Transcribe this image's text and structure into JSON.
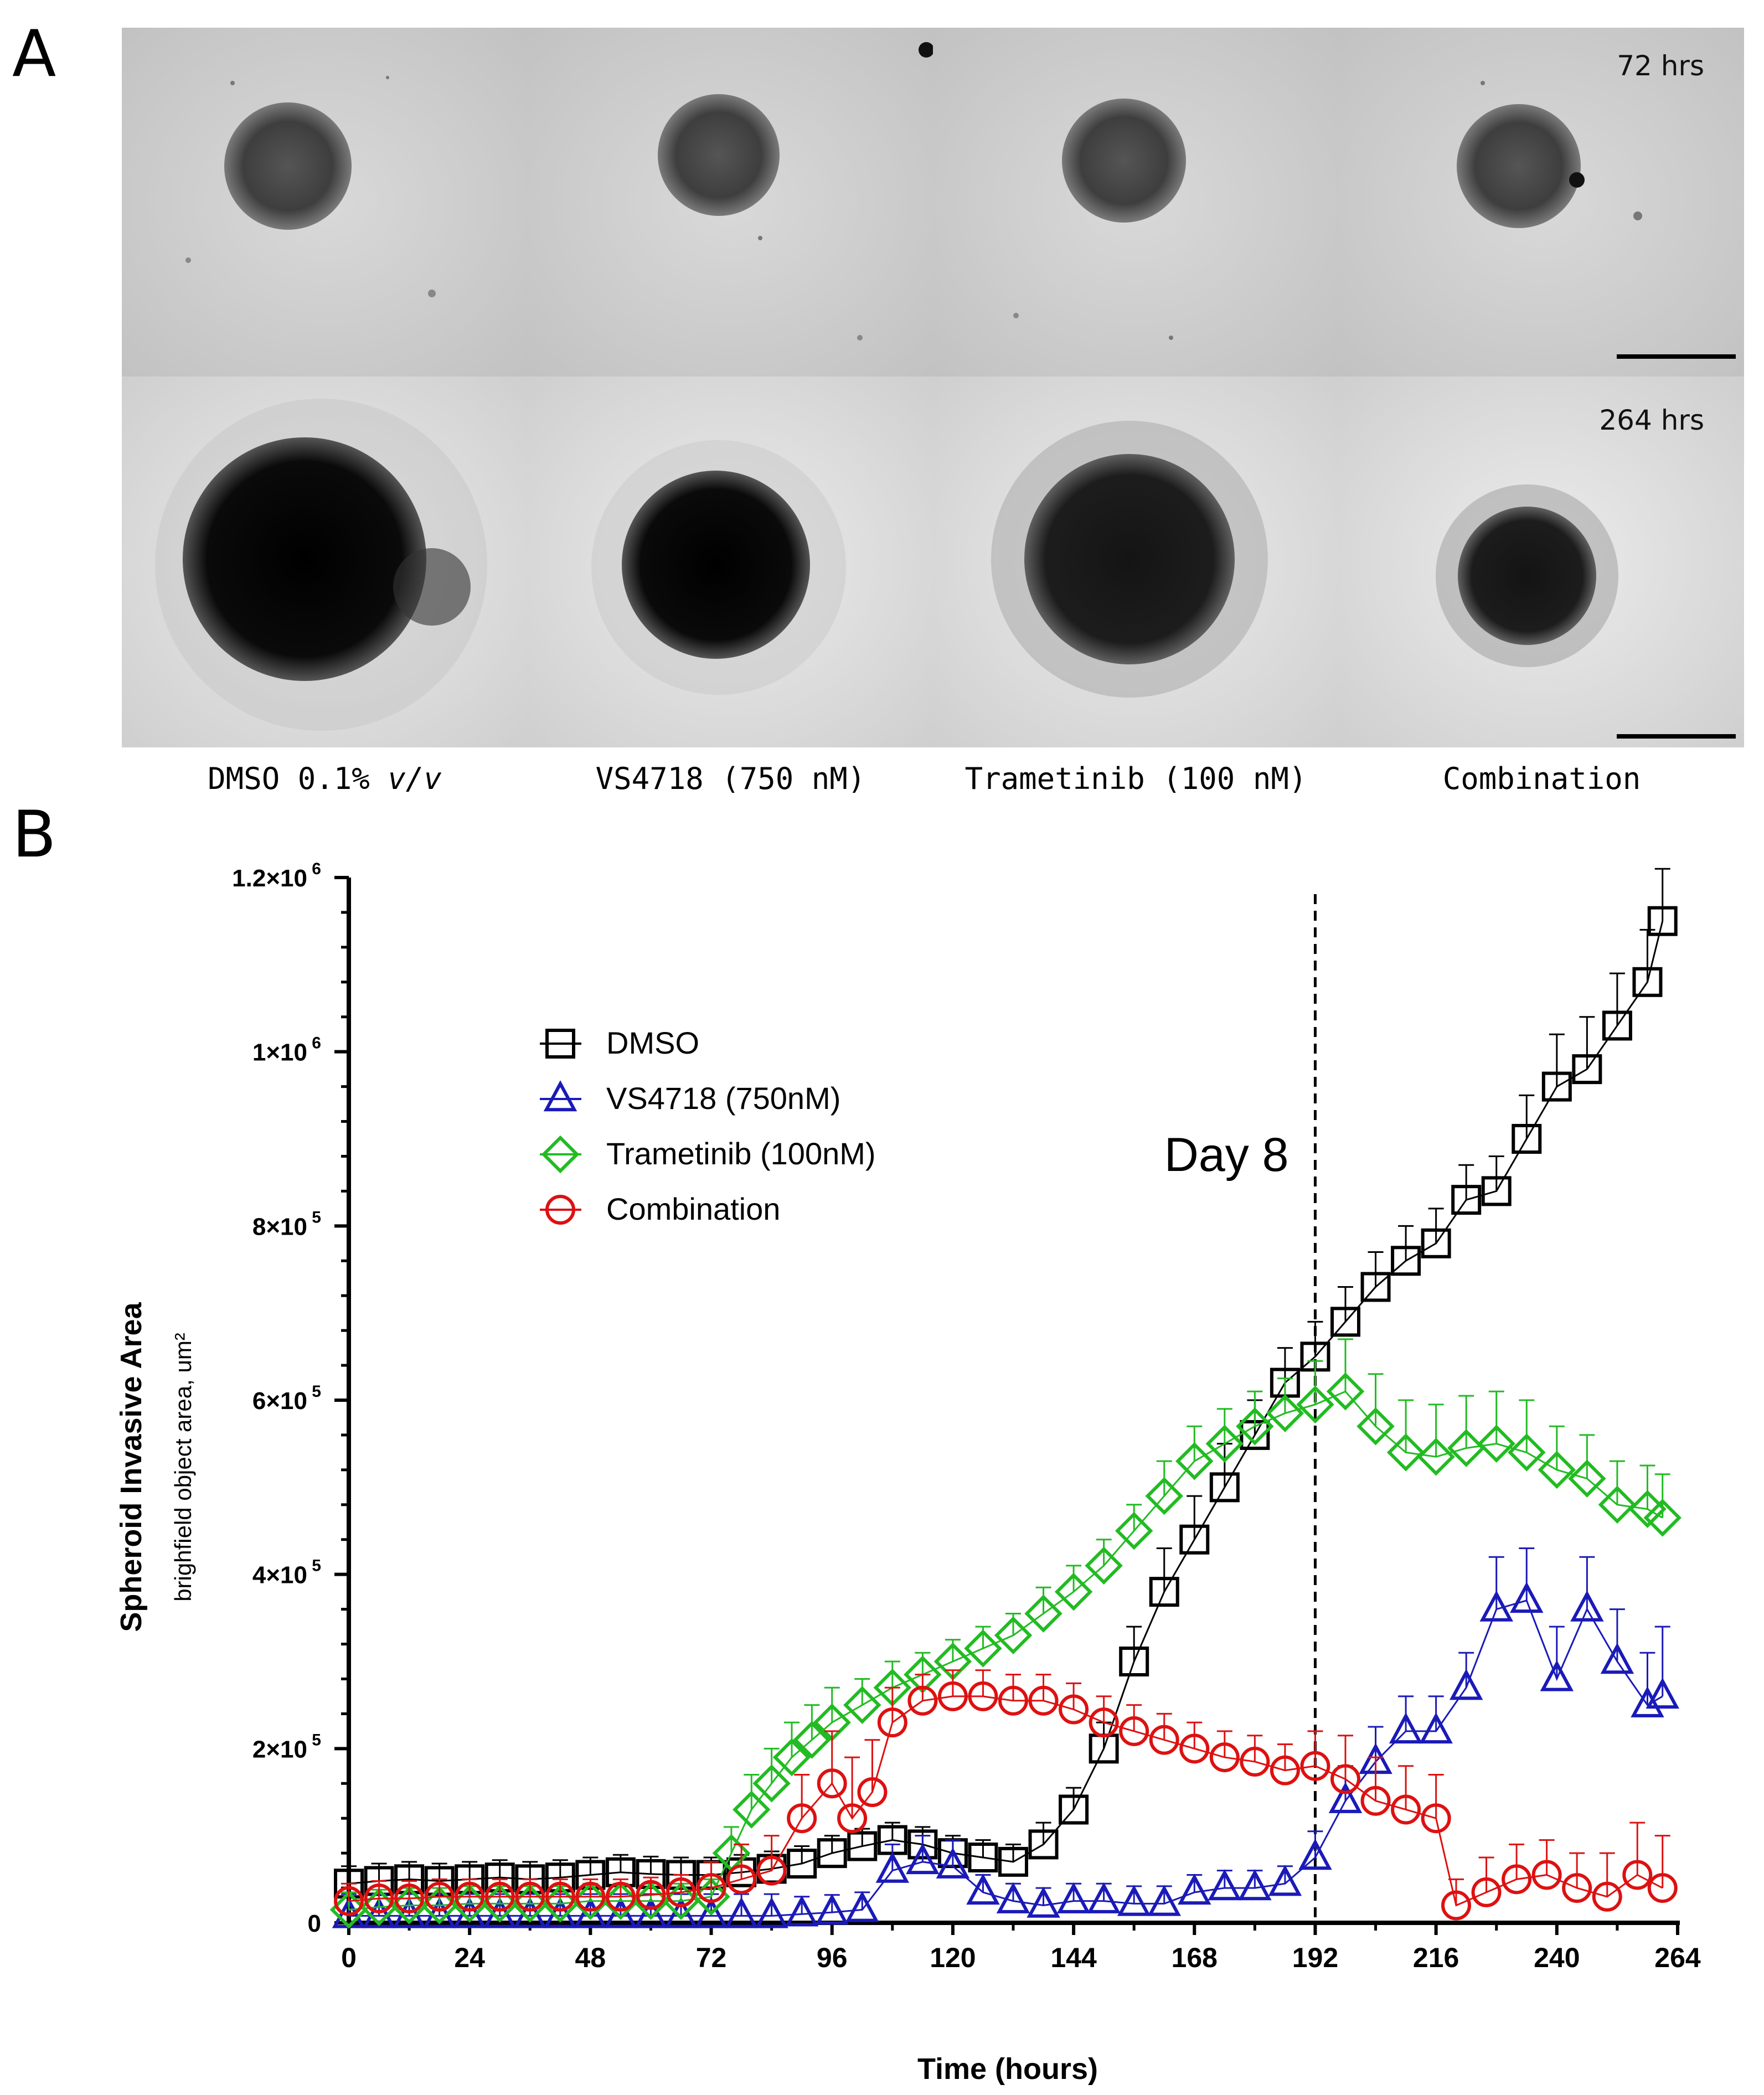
{
  "panel_a": {
    "letter": "A",
    "time_labels": [
      "72 hrs",
      "264 hrs"
    ],
    "conditions": [
      {
        "main": "DMSO 0.1% ",
        "italic": "v/v"
      },
      {
        "main": "VS4718 (750 nM)",
        "italic": ""
      },
      {
        "main": "Trametinib (100 nM)",
        "italic": ""
      },
      {
        "main": "Combination",
        "italic": ""
      }
    ]
  },
  "panel_b": {
    "letter": "B",
    "annotation": "Day 8"
  },
  "chart_data": {
    "type": "scatter",
    "xlabel": "Time (hours)",
    "ylabel": "Spheroid Invasive Area",
    "ylabel_sub": "brighfield object area, um²",
    "xlim": [
      0,
      264
    ],
    "ylim": [
      0,
      1200000
    ],
    "xticks": [
      0,
      24,
      48,
      72,
      96,
      120,
      144,
      168,
      192,
      216,
      240,
      264
    ],
    "yticks": [
      {
        "value": 0,
        "base": "0",
        "exp": ""
      },
      {
        "value": 200000,
        "base": "2×10",
        "exp": "5"
      },
      {
        "value": 400000,
        "base": "4×10",
        "exp": "5"
      },
      {
        "value": 600000,
        "base": "6×10",
        "exp": "5"
      },
      {
        "value": 800000,
        "base": "8×10",
        "exp": "5"
      },
      {
        "value": 1000000,
        "base": "1×10",
        "exp": "6"
      },
      {
        "value": 1200000,
        "base": "1.2×10",
        "exp": "6"
      }
    ],
    "vline": {
      "x": 192,
      "label": "Day 8"
    },
    "legend": {
      "position": "top-left"
    },
    "series": [
      {
        "name": "DMSO",
        "color": "#000000",
        "marker": "square",
        "x": [
          0,
          6,
          12,
          18,
          24,
          30,
          36,
          42,
          48,
          54,
          60,
          66,
          72,
          78,
          84,
          90,
          96,
          102,
          108,
          114,
          120,
          126,
          132,
          138,
          144,
          150,
          156,
          162,
          168,
          174,
          180,
          186,
          192,
          198,
          204,
          210,
          216,
          222,
          228,
          234,
          240,
          246,
          252,
          258,
          261
        ],
        "y": [
          45000,
          48000,
          50000,
          48000,
          50000,
          52000,
          50000,
          52000,
          55000,
          58000,
          56000,
          55000,
          55000,
          58000,
          62000,
          68000,
          80000,
          88000,
          95000,
          90000,
          80000,
          75000,
          70000,
          90000,
          130000,
          200000,
          300000,
          380000,
          440000,
          500000,
          560000,
          620000,
          650000,
          690000,
          730000,
          760000,
          780000,
          830000,
          840000,
          900000,
          960000,
          980000,
          1030000,
          1080000,
          1150000
        ],
        "err_y": [
          20000,
          20000,
          20000,
          20000,
          20000,
          20000,
          20000,
          20000,
          20000,
          20000,
          20000,
          20000,
          20000,
          20000,
          20000,
          20000,
          20000,
          20000,
          20000,
          20000,
          20000,
          20000,
          20000,
          25000,
          25000,
          30000,
          40000,
          50000,
          50000,
          50000,
          40000,
          40000,
          40000,
          40000,
          40000,
          40000,
          40000,
          40000,
          40000,
          50000,
          60000,
          60000,
          60000,
          60000,
          60000
        ]
      },
      {
        "name": "VS4718 (750nM)",
        "color": "#1a1ab8",
        "marker": "triangle",
        "x": [
          0,
          6,
          12,
          18,
          24,
          30,
          36,
          42,
          48,
          54,
          60,
          66,
          72,
          78,
          84,
          90,
          96,
          102,
          108,
          114,
          120,
          126,
          132,
          138,
          144,
          150,
          156,
          162,
          168,
          174,
          180,
          186,
          192,
          198,
          204,
          210,
          216,
          222,
          228,
          234,
          240,
          246,
          252,
          258,
          261
        ],
        "y": [
          8000,
          8000,
          8000,
          8000,
          8000,
          8000,
          8000,
          8000,
          8000,
          8000,
          8000,
          8000,
          8000,
          8000,
          8000,
          10000,
          12000,
          15000,
          60000,
          70000,
          65000,
          35000,
          25000,
          20000,
          25000,
          25000,
          22000,
          22000,
          35000,
          40000,
          40000,
          45000,
          75000,
          140000,
          185000,
          220000,
          220000,
          270000,
          360000,
          370000,
          280000,
          360000,
          300000,
          250000,
          260000
        ],
        "err_y": [
          25000,
          25000,
          25000,
          25000,
          25000,
          25000,
          25000,
          25000,
          25000,
          25000,
          25000,
          25000,
          25000,
          25000,
          25000,
          20000,
          20000,
          20000,
          30000,
          30000,
          30000,
          20000,
          20000,
          20000,
          20000,
          20000,
          20000,
          20000,
          20000,
          20000,
          20000,
          20000,
          30000,
          40000,
          40000,
          40000,
          40000,
          40000,
          60000,
          60000,
          60000,
          60000,
          60000,
          60000,
          80000
        ]
      },
      {
        "name": "Trametinib (100nM)",
        "color": "#22bb22",
        "marker": "diamond",
        "x": [
          0,
          6,
          12,
          18,
          24,
          30,
          36,
          42,
          48,
          54,
          60,
          66,
          72,
          76,
          80,
          84,
          88,
          92,
          96,
          102,
          108,
          114,
          120,
          126,
          132,
          138,
          144,
          150,
          156,
          162,
          168,
          174,
          180,
          186,
          192,
          198,
          204,
          210,
          216,
          222,
          228,
          234,
          240,
          246,
          252,
          258,
          261
        ],
        "y": [
          15000,
          18000,
          20000,
          20000,
          22000,
          22000,
          22000,
          22000,
          25000,
          25000,
          25000,
          25000,
          30000,
          80000,
          130000,
          160000,
          190000,
          210000,
          230000,
          250000,
          270000,
          285000,
          300000,
          315000,
          330000,
          355000,
          380000,
          410000,
          450000,
          490000,
          530000,
          550000,
          570000,
          585000,
          595000,
          610000,
          570000,
          540000,
          535000,
          545000,
          550000,
          540000,
          520000,
          510000,
          480000,
          475000,
          465000
        ],
        "err_y": [
          20000,
          20000,
          20000,
          20000,
          20000,
          20000,
          20000,
          20000,
          20000,
          20000,
          20000,
          20000,
          20000,
          30000,
          40000,
          40000,
          40000,
          40000,
          40000,
          30000,
          30000,
          25000,
          25000,
          25000,
          25000,
          30000,
          30000,
          30000,
          30000,
          40000,
          40000,
          40000,
          40000,
          40000,
          50000,
          60000,
          60000,
          60000,
          60000,
          60000,
          60000,
          60000,
          50000,
          50000,
          50000,
          50000,
          50000
        ]
      },
      {
        "name": "Combination",
        "color": "#dd1111",
        "marker": "circle",
        "x": [
          0,
          6,
          12,
          18,
          24,
          30,
          36,
          42,
          48,
          54,
          60,
          66,
          72,
          78,
          84,
          90,
          96,
          100,
          104,
          108,
          114,
          120,
          126,
          132,
          138,
          144,
          150,
          156,
          162,
          168,
          174,
          180,
          186,
          192,
          198,
          204,
          210,
          216,
          220,
          226,
          232,
          238,
          244,
          250,
          256,
          261
        ],
        "y": [
          25000,
          28000,
          28000,
          30000,
          30000,
          30000,
          30000,
          30000,
          30000,
          30000,
          32000,
          35000,
          40000,
          50000,
          60000,
          120000,
          160000,
          120000,
          150000,
          230000,
          255000,
          260000,
          260000,
          255000,
          255000,
          245000,
          230000,
          220000,
          210000,
          200000,
          190000,
          185000,
          175000,
          180000,
          165000,
          140000,
          130000,
          120000,
          20000,
          35000,
          50000,
          55000,
          40000,
          30000,
          55000,
          40000
        ],
        "err_y": [
          20000,
          20000,
          20000,
          20000,
          20000,
          20000,
          20000,
          20000,
          20000,
          20000,
          20000,
          20000,
          30000,
          40000,
          40000,
          50000,
          60000,
          70000,
          60000,
          40000,
          30000,
          30000,
          30000,
          30000,
          30000,
          30000,
          30000,
          30000,
          30000,
          30000,
          30000,
          30000,
          30000,
          40000,
          50000,
          50000,
          50000,
          50000,
          30000,
          40000,
          40000,
          40000,
          40000,
          50000,
          60000,
          60000
        ]
      }
    ]
  }
}
